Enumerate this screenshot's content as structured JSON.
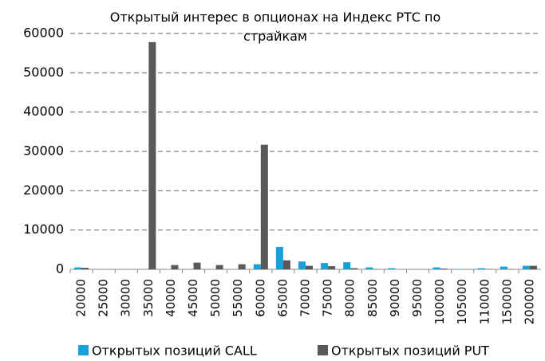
{
  "chart_data": {
    "type": "bar",
    "title": "Открытый интерес в опционах на Индекс РТС по страйкам",
    "categories": [
      "20000",
      "25000",
      "30000",
      "35000",
      "40000",
      "45000",
      "50000",
      "55000",
      "60000",
      "65000",
      "70000",
      "75000",
      "80000",
      "85000",
      "90000",
      "95000",
      "100000",
      "105000",
      "110000",
      "150000",
      "200000"
    ],
    "series": [
      {
        "name": "Открытых позиций CALL",
        "color": "#1a9fd9",
        "values": [
          500,
          0,
          0,
          0,
          0,
          0,
          0,
          0,
          1300,
          5700,
          2000,
          1600,
          1800,
          500,
          300,
          0,
          500,
          100,
          300,
          700,
          900
        ]
      },
      {
        "name": "Открытых позиций PUT",
        "color": "#595959",
        "values": [
          400,
          0,
          0,
          57800,
          1100,
          1700,
          1100,
          1300,
          31700,
          2300,
          900,
          800,
          300,
          100,
          0,
          0,
          200,
          0,
          100,
          100,
          900
        ]
      }
    ],
    "ylim": [
      0,
      60000
    ],
    "yticks": [
      0,
      10000,
      20000,
      30000,
      40000,
      50000,
      60000
    ],
    "grid": true,
    "legend": "bottom"
  }
}
